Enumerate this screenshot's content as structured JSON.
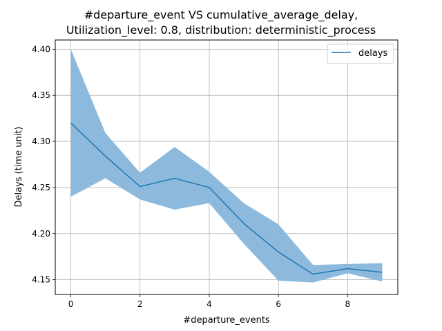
{
  "chart_data": {
    "type": "line",
    "title_line1": "#departure_event VS cumulative_average_delay,",
    "title_line2": "Utilization_level: 0.8, distribution: deterministic_process",
    "xlabel": "#departure_events",
    "ylabel": "Delays (time unit)",
    "xlim": [
      -0.45,
      9.45
    ],
    "ylim": [
      4.134,
      4.41
    ],
    "xticks": [
      0,
      2,
      4,
      6,
      8
    ],
    "yticks": [
      4.15,
      4.2,
      4.25,
      4.3,
      4.35,
      4.4
    ],
    "ytick_labels": [
      "4.15",
      "4.20",
      "4.25",
      "4.30",
      "4.35",
      "4.40"
    ],
    "grid": true,
    "legend_position": "upper right",
    "series": [
      {
        "name": "delays",
        "color": "#1f77b4",
        "band_color": "#8dbadc",
        "x": [
          0,
          1,
          2,
          3,
          4,
          5,
          6,
          7,
          8,
          9
        ],
        "y": [
          4.32,
          4.284,
          4.251,
          4.26,
          4.25,
          4.211,
          4.18,
          4.156,
          4.162,
          4.158
        ],
        "upper": [
          4.4,
          4.309,
          4.266,
          4.294,
          4.267,
          4.233,
          4.21,
          4.166,
          4.167,
          4.168
        ],
        "lower": [
          4.24,
          4.26,
          4.237,
          4.226,
          4.233,
          4.189,
          4.149,
          4.147,
          4.157,
          4.148
        ]
      }
    ]
  }
}
